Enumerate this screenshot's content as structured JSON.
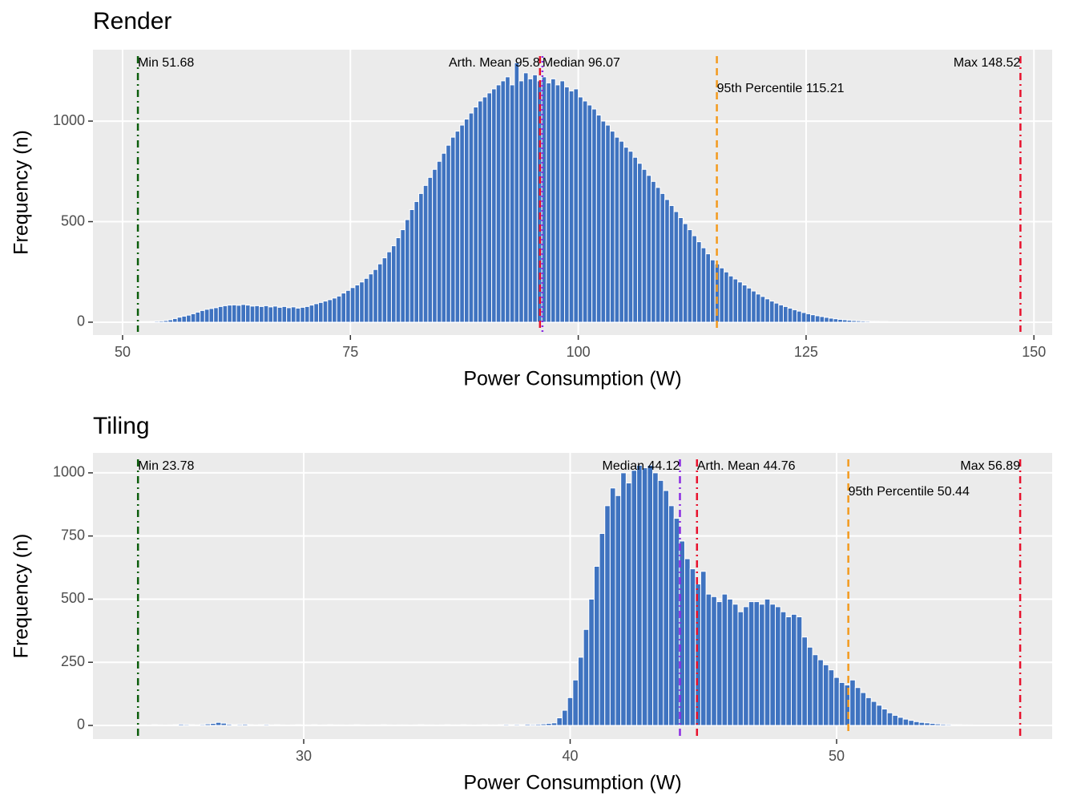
{
  "chart_data": [
    {
      "type": "histogram",
      "title": "Render",
      "x_label": "Power Consumption (W)",
      "y_label": "Frequency (n)",
      "color": "#3f73c0",
      "grid": true,
      "xlim": [
        46.75,
        152.0
      ],
      "ylim": [
        -64,
        1355
      ],
      "xticks": [
        50,
        75,
        100,
        125,
        150
      ],
      "yticks": [
        0,
        500,
        1000
      ],
      "bins": [
        51.5,
        52,
        52.5,
        53,
        53.5,
        54,
        54.5,
        55,
        55.5,
        56,
        56.5,
        57,
        57.5,
        58,
        58.5,
        59,
        59.5,
        60,
        60.5,
        61,
        61.5,
        62,
        62.5,
        63,
        63.5,
        64,
        64.5,
        65,
        65.5,
        66,
        66.5,
        67,
        67.5,
        68,
        68.5,
        69,
        69.5,
        70,
        70.5,
        71,
        71.5,
        72,
        72.5,
        73,
        73.5,
        74,
        74.5,
        75,
        75.5,
        76,
        76.5,
        77,
        77.5,
        78,
        78.5,
        79,
        79.5,
        80,
        80.5,
        81,
        81.5,
        82,
        82.5,
        83,
        83.5,
        84,
        84.5,
        85,
        85.5,
        86,
        86.5,
        87,
        87.5,
        88,
        88.5,
        89,
        89.5,
        90,
        90.5,
        91,
        91.5,
        92,
        92.5,
        93,
        93.5,
        94,
        94.5,
        95,
        95.5,
        96,
        96.5,
        97,
        97.5,
        98,
        98.5,
        99,
        99.5,
        100,
        100.5,
        101,
        101.5,
        102,
        102.5,
        103,
        103.5,
        104,
        104.5,
        105,
        105.5,
        106,
        106.5,
        107,
        107.5,
        108,
        108.5,
        109,
        109.5,
        110,
        110.5,
        111,
        111.5,
        112,
        112.5,
        113,
        113.5,
        114,
        114.5,
        115,
        115.5,
        116,
        116.5,
        117,
        117.5,
        118,
        118.5,
        119,
        119.5,
        120,
        120.5,
        121,
        121.5,
        122,
        122.5,
        123,
        123.5,
        124,
        124.5,
        125,
        125.5,
        126,
        126.5,
        127,
        127.5,
        128,
        128.5,
        129,
        129.5,
        130,
        130.5,
        131,
        131.5,
        132,
        132.5,
        133,
        133.5,
        134,
        134.5,
        135,
        135.5,
        136,
        136.5,
        137,
        137.5,
        138,
        138.5,
        139,
        139.5,
        140,
        140.5,
        141,
        141.5,
        142,
        142.5,
        143,
        143.5,
        144,
        144.5,
        145,
        145.5,
        146,
        146.5,
        147,
        147.5,
        148,
        148.5
      ],
      "counts": [
        2,
        3,
        3,
        4,
        5,
        6,
        8,
        12,
        18,
        25,
        30,
        35,
        42,
        50,
        58,
        64,
        68,
        72,
        78,
        82,
        85,
        86,
        84,
        88,
        85,
        80,
        82,
        78,
        82,
        76,
        80,
        74,
        78,
        72,
        76,
        70,
        74,
        78,
        85,
        92,
        98,
        105,
        112,
        120,
        130,
        145,
        158,
        172,
        185,
        200,
        218,
        240,
        262,
        290,
        320,
        350,
        380,
        420,
        460,
        510,
        560,
        600,
        640,
        680,
        720,
        760,
        800,
        840,
        880,
        920,
        950,
        980,
        1010,
        1040,
        1070,
        1100,
        1120,
        1140,
        1160,
        1180,
        1200,
        1220,
        1180,
        1290,
        1200,
        1240,
        1210,
        1230,
        1200,
        1220,
        1190,
        1210,
        1180,
        1200,
        1170,
        1150,
        1160,
        1120,
        1100,
        1080,
        1060,
        1030,
        1000,
        980,
        950,
        920,
        900,
        870,
        850,
        820,
        790,
        760,
        730,
        700,
        670,
        640,
        610,
        580,
        550,
        520,
        490,
        460,
        430,
        400,
        370,
        340,
        310,
        290,
        270,
        250,
        230,
        215,
        200,
        185,
        170,
        155,
        140,
        128,
        116,
        105,
        95,
        86,
        78,
        70,
        62,
        55,
        48,
        42,
        37,
        32,
        28,
        24,
        20,
        17,
        14,
        12,
        10,
        8,
        7,
        6,
        5,
        4,
        4,
        3,
        3,
        2,
        2,
        2,
        1,
        1,
        1,
        1,
        1,
        0,
        1,
        0,
        0,
        1,
        0,
        0,
        0,
        0,
        0,
        0,
        0,
        0,
        0,
        0,
        0,
        0,
        0,
        0,
        0,
        1
      ],
      "lines": [
        {
          "label": "Min 51.68",
          "value": 51.68,
          "color": "#0b5d0b",
          "style": "dotdash",
          "align": "left"
        },
        {
          "label": "Arth. Mean 95.8",
          "value": 95.8,
          "color": "#e8112d",
          "style": "dashed",
          "align": "right"
        },
        {
          "label": "Median 96.07",
          "value": 96.07,
          "color": "#8b2be2",
          "style": "dotted",
          "align": "left"
        },
        {
          "label": "95th Percentile 115.21",
          "value": 115.21,
          "color": "#f39a1e",
          "style": "dashed",
          "align": "left"
        },
        {
          "label": "Max 148.52",
          "value": 148.52,
          "color": "#e8112d",
          "style": "dotdash",
          "align": "right"
        }
      ]
    },
    {
      "type": "histogram",
      "title": "Tiling",
      "x_label": "Power Consumption (W)",
      "y_label": "Frequency (n)",
      "color": "#3f73c0",
      "grid": true,
      "xlim": [
        22.09,
        58.09
      ],
      "ylim": [
        -54,
        1079
      ],
      "xticks": [
        30,
        40,
        50
      ],
      "yticks": [
        0,
        250,
        500,
        750,
        1000
      ],
      "bins": [
        23.7,
        23.9,
        24.1,
        24.3,
        24.5,
        24.7,
        24.9,
        25.1,
        25.3,
        25.5,
        25.7,
        25.9,
        26.1,
        26.3,
        26.5,
        26.7,
        26.9,
        27.1,
        27.3,
        27.5,
        27.7,
        27.9,
        28.1,
        28.3,
        28.5,
        28.7,
        28.9,
        29.1,
        29.3,
        29.5,
        29.7,
        29.9,
        30.1,
        30.3,
        30.5,
        30.7,
        30.9,
        31.1,
        31.3,
        31.5,
        31.7,
        31.9,
        32.1,
        32.3,
        32.5,
        32.7,
        32.9,
        33.1,
        33.3,
        33.5,
        33.7,
        33.9,
        34.1,
        34.3,
        34.5,
        34.7,
        34.9,
        35.1,
        35.3,
        35.5,
        35.7,
        35.9,
        36.1,
        36.3,
        36.5,
        36.7,
        36.9,
        37.1,
        37.3,
        37.5,
        37.7,
        37.9,
        38.1,
        38.3,
        38.5,
        38.7,
        38.9,
        39.1,
        39.3,
        39.5,
        39.7,
        39.9,
        40.1,
        40.3,
        40.5,
        40.7,
        40.9,
        41.1,
        41.3,
        41.5,
        41.7,
        41.9,
        42.1,
        42.3,
        42.5,
        42.7,
        42.9,
        43.1,
        43.3,
        43.5,
        43.7,
        43.9,
        44.1,
        44.3,
        44.5,
        44.7,
        44.9,
        45.1,
        45.3,
        45.5,
        45.7,
        45.9,
        46.1,
        46.3,
        46.5,
        46.7,
        46.9,
        47.1,
        47.3,
        47.5,
        47.7,
        47.9,
        48.1,
        48.3,
        48.5,
        48.7,
        48.9,
        49.1,
        49.3,
        49.5,
        49.7,
        49.9,
        50.1,
        50.3,
        50.5,
        50.7,
        50.9,
        51.1,
        51.3,
        51.5,
        51.7,
        51.9,
        52.1,
        52.3,
        52.5,
        52.7,
        52.9,
        53.1,
        53.3,
        53.5,
        53.7,
        53.9,
        54.1,
        54.3,
        54.5,
        54.7,
        54.9,
        55.1,
        55.3,
        55.5,
        55.7,
        55.9,
        56.1,
        56.3,
        56.5,
        56.7,
        56.9
      ],
      "counts": [
        1,
        2,
        1,
        3,
        2,
        1,
        2,
        3,
        5,
        4,
        3,
        2,
        4,
        6,
        8,
        12,
        9,
        5,
        3,
        4,
        5,
        3,
        2,
        3,
        4,
        2,
        3,
        2,
        1,
        2,
        3,
        2,
        2,
        3,
        1,
        2,
        3,
        2,
        2,
        1,
        2,
        3,
        2,
        1,
        2,
        2,
        3,
        2,
        1,
        2,
        2,
        1,
        2,
        3,
        2,
        2,
        1,
        2,
        3,
        2,
        2,
        3,
        2,
        1,
        2,
        3,
        2,
        2,
        3,
        4,
        3,
        4,
        3,
        5,
        4,
        5,
        6,
        8,
        10,
        30,
        60,
        110,
        180,
        270,
        380,
        500,
        630,
        760,
        870,
        940,
        910,
        1000,
        960,
        1010,
        1030,
        1020,
        1030,
        1000,
        970,
        930,
        870,
        820,
        730,
        660,
        620,
        560,
        610,
        520,
        510,
        490,
        520,
        500,
        480,
        450,
        470,
        490,
        490,
        480,
        500,
        480,
        470,
        450,
        430,
        440,
        430,
        350,
        310,
        280,
        260,
        240,
        220,
        190,
        170,
        160,
        180,
        150,
        130,
        110,
        95,
        80,
        65,
        50,
        40,
        32,
        25,
        20,
        15,
        12,
        10,
        8,
        6,
        5,
        4,
        3,
        3,
        2,
        2,
        1,
        1,
        1,
        1,
        0,
        1,
        0,
        0,
        1
      ],
      "lines": [
        {
          "label": "Min 23.78",
          "value": 23.78,
          "color": "#0b5d0b",
          "style": "dotdash",
          "align": "left"
        },
        {
          "label": "Median 44.12",
          "value": 44.12,
          "color": "#8b2be2",
          "style": "dotdash",
          "align": "right"
        },
        {
          "label": "Arth. Mean 44.76",
          "value": 44.76,
          "color": "#e8112d",
          "style": "dotdash",
          "align": "left"
        },
        {
          "label": "95th Percentile 50.44",
          "value": 50.44,
          "color": "#f39a1e",
          "style": "dashed",
          "align": "left"
        },
        {
          "label": "Max 56.89",
          "value": 56.89,
          "color": "#e8112d",
          "style": "dotdash",
          "align": "right"
        }
      ]
    }
  ]
}
